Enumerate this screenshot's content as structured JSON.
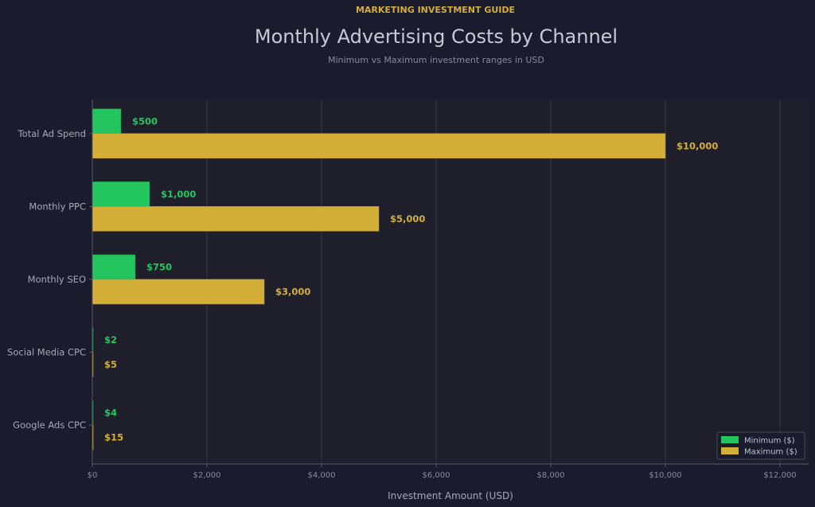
{
  "header": {
    "eyebrow": "MARKETING INVESTMENT GUIDE",
    "title": "Monthly Advertising Costs by Channel",
    "subtitle": "Minimum vs Maximum investment ranges in USD"
  },
  "colors": {
    "background": "#1b1b2e",
    "plot_background": "#1f1f2c",
    "minimum": "#22c55e",
    "maximum": "#d4af37",
    "eyebrow": "#d4af37",
    "title": "#c8c8d4",
    "muted": "#8a8a96",
    "grid": "#34343f",
    "axis": "#5a5a66"
  },
  "chart_data": {
    "type": "bar",
    "orientation": "horizontal",
    "categories": [
      "Total Ad Spend",
      "Monthly PPC",
      "Monthly SEO",
      "Social Media CPC",
      "Google Ads CPC"
    ],
    "series": [
      {
        "name": "Minimum ($)",
        "values": [
          500,
          1000,
          750,
          2,
          4
        ],
        "labels": [
          "$500",
          "$1,000",
          "$750",
          "$2",
          "$4"
        ]
      },
      {
        "name": "Maximum ($)",
        "values": [
          10000,
          5000,
          3000,
          5,
          15
        ],
        "labels": [
          "$10,000",
          "$5,000",
          "$3,000",
          "$5",
          "$15"
        ]
      }
    ],
    "xlabel": "Investment Amount (USD)",
    "ylabel": "",
    "xlim": [
      0,
      12500
    ],
    "x_ticks": [
      0,
      2000,
      4000,
      6000,
      8000,
      10000,
      12000
    ],
    "x_tick_labels": [
      "$0",
      "$2,000",
      "$4,000",
      "$6,000",
      "$8,000",
      "$10,000",
      "$12,000"
    ],
    "grid": "vertical",
    "legend_position": "bottom-right"
  }
}
